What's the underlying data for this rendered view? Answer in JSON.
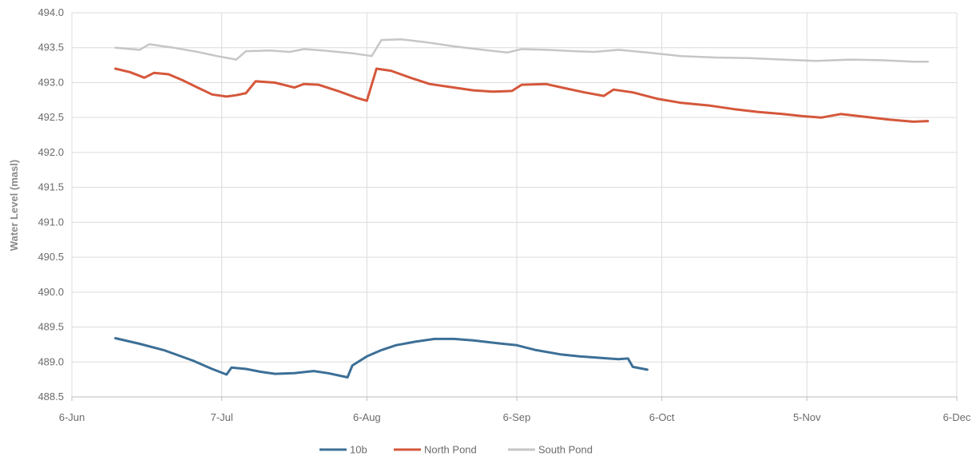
{
  "chart_data": {
    "type": "line",
    "title": "",
    "xlabel": "",
    "ylabel": "Water Level (masl)",
    "xlim": [
      "2018-06-06",
      "2018-12-06"
    ],
    "ylim": [
      488.5,
      494.0
    ],
    "x_ticks": [
      "6-Jun",
      "7-Jul",
      "6-Aug",
      "6-Sep",
      "6-Oct",
      "5-Nov",
      "6-Dec"
    ],
    "y_ticks": [
      "488.5",
      "489.0",
      "489.5",
      "490.0",
      "490.5",
      "491.0",
      "491.5",
      "492.0",
      "492.5",
      "493.0",
      "493.5",
      "494.0"
    ],
    "grid": true,
    "legend_position": "bottom",
    "series": [
      {
        "name": "10b",
        "color": "#3c6f96",
        "points": [
          [
            "2018-06-15",
            489.34
          ],
          [
            "2018-06-20",
            489.26
          ],
          [
            "2018-06-25",
            489.17
          ],
          [
            "2018-07-01",
            489.02
          ],
          [
            "2018-07-05",
            488.9
          ],
          [
            "2018-07-08",
            488.82
          ],
          [
            "2018-07-09",
            488.92
          ],
          [
            "2018-07-12",
            488.9
          ],
          [
            "2018-07-15",
            488.86
          ],
          [
            "2018-07-18",
            488.83
          ],
          [
            "2018-07-22",
            488.84
          ],
          [
            "2018-07-26",
            488.87
          ],
          [
            "2018-07-29",
            488.84
          ],
          [
            "2018-08-02",
            488.78
          ],
          [
            "2018-08-03",
            488.95
          ],
          [
            "2018-08-06",
            489.08
          ],
          [
            "2018-08-09",
            489.17
          ],
          [
            "2018-08-12",
            489.24
          ],
          [
            "2018-08-16",
            489.29
          ],
          [
            "2018-08-20",
            489.33
          ],
          [
            "2018-08-24",
            489.33
          ],
          [
            "2018-08-28",
            489.31
          ],
          [
            "2018-09-02",
            489.27
          ],
          [
            "2018-09-06",
            489.24
          ],
          [
            "2018-09-10",
            489.17
          ],
          [
            "2018-09-15",
            489.11
          ],
          [
            "2018-09-19",
            489.08
          ],
          [
            "2018-09-23",
            489.06
          ],
          [
            "2018-09-27",
            489.04
          ],
          [
            "2018-09-29",
            489.05
          ],
          [
            "2018-09-30",
            488.93
          ],
          [
            "2018-10-03",
            488.89
          ]
        ]
      },
      {
        "name": "North Pond",
        "color": "#d5573b",
        "points": [
          [
            "2018-06-15",
            493.2
          ],
          [
            "2018-06-18",
            493.15
          ],
          [
            "2018-06-21",
            493.07
          ],
          [
            "2018-06-23",
            493.14
          ],
          [
            "2018-06-26",
            493.12
          ],
          [
            "2018-06-29",
            493.03
          ],
          [
            "2018-07-02",
            492.93
          ],
          [
            "2018-07-05",
            492.83
          ],
          [
            "2018-07-08",
            492.8
          ],
          [
            "2018-07-10",
            492.82
          ],
          [
            "2018-07-12",
            492.85
          ],
          [
            "2018-07-14",
            493.02
          ],
          [
            "2018-07-18",
            493.0
          ],
          [
            "2018-07-22",
            492.93
          ],
          [
            "2018-07-24",
            492.98
          ],
          [
            "2018-07-27",
            492.97
          ],
          [
            "2018-07-31",
            492.88
          ],
          [
            "2018-08-04",
            492.78
          ],
          [
            "2018-08-06",
            492.74
          ],
          [
            "2018-08-08",
            493.2
          ],
          [
            "2018-08-11",
            493.17
          ],
          [
            "2018-08-15",
            493.07
          ],
          [
            "2018-08-19",
            492.98
          ],
          [
            "2018-08-24",
            492.93
          ],
          [
            "2018-08-28",
            492.89
          ],
          [
            "2018-09-01",
            492.87
          ],
          [
            "2018-09-05",
            492.88
          ],
          [
            "2018-09-07",
            492.97
          ],
          [
            "2018-09-12",
            492.98
          ],
          [
            "2018-09-16",
            492.92
          ],
          [
            "2018-09-20",
            492.86
          ],
          [
            "2018-09-24",
            492.81
          ],
          [
            "2018-09-26",
            492.9
          ],
          [
            "2018-09-30",
            492.86
          ],
          [
            "2018-10-05",
            492.77
          ],
          [
            "2018-10-10",
            492.71
          ],
          [
            "2018-10-16",
            492.67
          ],
          [
            "2018-10-21",
            492.62
          ],
          [
            "2018-10-26",
            492.58
          ],
          [
            "2018-10-31",
            492.55
          ],
          [
            "2018-11-04",
            492.52
          ],
          [
            "2018-11-08",
            492.5
          ],
          [
            "2018-11-12",
            492.55
          ],
          [
            "2018-11-17",
            492.51
          ],
          [
            "2018-11-22",
            492.47
          ],
          [
            "2018-11-27",
            492.44
          ],
          [
            "2018-11-30",
            492.45
          ]
        ]
      },
      {
        "name": "South Pond",
        "color": "#c6c6c6",
        "points": [
          [
            "2018-06-15",
            493.5
          ],
          [
            "2018-06-20",
            493.47
          ],
          [
            "2018-06-22",
            493.55
          ],
          [
            "2018-06-27",
            493.5
          ],
          [
            "2018-07-02",
            493.44
          ],
          [
            "2018-07-06",
            493.38
          ],
          [
            "2018-07-10",
            493.33
          ],
          [
            "2018-07-12",
            493.45
          ],
          [
            "2018-07-17",
            493.46
          ],
          [
            "2018-07-21",
            493.44
          ],
          [
            "2018-07-24",
            493.48
          ],
          [
            "2018-07-28",
            493.46
          ],
          [
            "2018-08-03",
            493.42
          ],
          [
            "2018-08-07",
            493.38
          ],
          [
            "2018-08-09",
            493.61
          ],
          [
            "2018-08-13",
            493.62
          ],
          [
            "2018-08-18",
            493.58
          ],
          [
            "2018-08-24",
            493.52
          ],
          [
            "2018-08-30",
            493.47
          ],
          [
            "2018-09-04",
            493.43
          ],
          [
            "2018-09-07",
            493.48
          ],
          [
            "2018-09-12",
            493.47
          ],
          [
            "2018-09-18",
            493.45
          ],
          [
            "2018-09-22",
            493.44
          ],
          [
            "2018-09-27",
            493.47
          ],
          [
            "2018-10-03",
            493.43
          ],
          [
            "2018-10-10",
            493.38
          ],
          [
            "2018-10-17",
            493.36
          ],
          [
            "2018-10-24",
            493.35
          ],
          [
            "2018-10-31",
            493.33
          ],
          [
            "2018-11-07",
            493.31
          ],
          [
            "2018-11-14",
            493.33
          ],
          [
            "2018-11-21",
            493.32
          ],
          [
            "2018-11-27",
            493.3
          ],
          [
            "2018-11-30",
            493.3
          ]
        ]
      }
    ]
  }
}
